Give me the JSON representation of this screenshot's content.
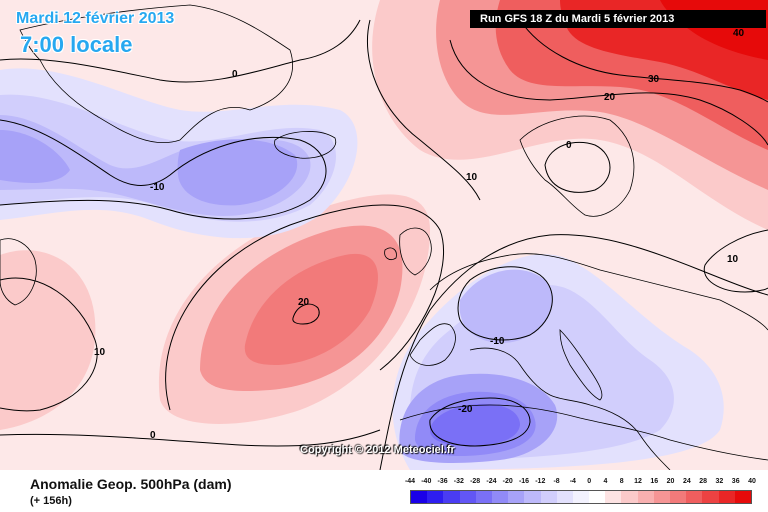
{
  "header": {
    "date": "Mardi 12 février 2013",
    "local_time": "7:00 locale",
    "run_info": "Run GFS 18 Z du Mardi 5 février 2013"
  },
  "footer": {
    "product": "Anomalie Geop. 500hPa (dam)",
    "lead_time": "(+ 156h)",
    "copyright": "Copyright © 2012 Meteociel.fr"
  },
  "legend": {
    "ticks": [
      "-44",
      "-40",
      "-36",
      "-32",
      "-28",
      "-24",
      "-20",
      "-16",
      "-12",
      "-8",
      "-4",
      "0",
      "4",
      "8",
      "12",
      "16",
      "20",
      "24",
      "28",
      "32",
      "36",
      "40"
    ],
    "colors": [
      "#1a00e8",
      "#2e1ef0",
      "#4a3cf3",
      "#6256f5",
      "#7a70f6",
      "#918af7",
      "#a7a2f8",
      "#bdb9fa",
      "#d1cefc",
      "#e3e1fd",
      "#f3f2fe",
      "#ffffff",
      "#fde3e3",
      "#fbcaca",
      "#f8b0b0",
      "#f59595",
      "#f27a7a",
      "#ef5e5e",
      "#ec4242",
      "#e92626",
      "#e60a0a"
    ]
  },
  "contour_labels": {
    "greenland_zero": "0",
    "atlantic_low": "-10",
    "iceland_ten": "10",
    "central_high": "20",
    "west_ten": "10",
    "south_zero": "0",
    "north_high_forty": "40",
    "north_high_thirty": "30",
    "north_high_twenty": "20",
    "scandinavia_zero": "0",
    "russia_ten": "10",
    "europe_low_minus_ten": "-10",
    "med_low_minus_twenty": "-20"
  }
}
